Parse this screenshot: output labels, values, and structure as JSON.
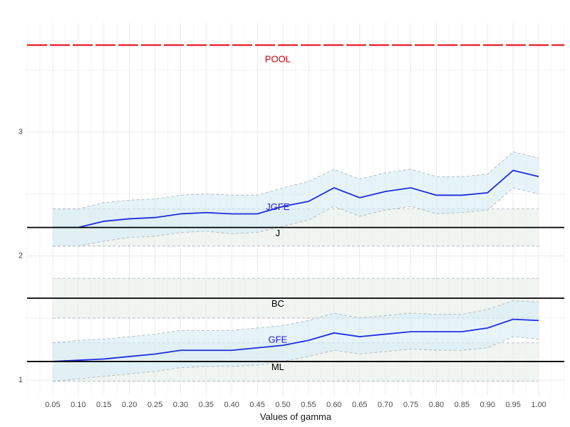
{
  "chart_data": {
    "type": "line",
    "title": "",
    "xlabel": "Values of gamma",
    "ylabel": "",
    "x": [
      0.05,
      0.1,
      0.15,
      0.2,
      0.25,
      0.3,
      0.35,
      0.4,
      0.45,
      0.5,
      0.55,
      0.6,
      0.65,
      0.7,
      0.75,
      0.8,
      0.85,
      0.9,
      0.95,
      1.0
    ],
    "x_tick_labels": [
      "0.05",
      "0.10",
      "0.15",
      "0.20",
      "0.25",
      "0.30",
      "0.35",
      "0.40",
      "0.45",
      "0.50",
      "0.55",
      "0.60",
      "0.65",
      "0.70",
      "0.75",
      "0.80",
      "0.85",
      "0.90",
      "0.95",
      "1.00"
    ],
    "xlim": [
      0.0,
      1.05
    ],
    "ylim": [
      0.88,
      3.88
    ],
    "y_ticks": [
      1,
      2,
      3
    ],
    "y_tick_labels": [
      "1",
      "2",
      "3"
    ],
    "grid": true,
    "legend": "none",
    "colors": {
      "jgfe_line": "#1f2de0",
      "gfe_line": "#1f2de0",
      "band_blue": "#d6ecf7",
      "band_grey": "#e4ece7",
      "band_border": "#a8b0b8",
      "ref_line": "#000000",
      "pool_line": "#e8000b",
      "pool_label": "#cc0000",
      "jgfe_label": "#2222cc",
      "gfe_label": "#2222cc",
      "black_label": "#000000"
    },
    "series": [
      {
        "name": "JGFE",
        "values": [
          2.23,
          2.23,
          2.28,
          2.3,
          2.31,
          2.34,
          2.35,
          2.34,
          2.34,
          2.4,
          2.44,
          2.55,
          2.47,
          2.52,
          2.55,
          2.49,
          2.49,
          2.51,
          2.69,
          2.64
        ],
        "lower": [
          2.08,
          2.08,
          2.12,
          2.15,
          2.16,
          2.19,
          2.2,
          2.18,
          2.19,
          2.24,
          2.29,
          2.4,
          2.32,
          2.37,
          2.4,
          2.34,
          2.35,
          2.37,
          2.55,
          2.5
        ],
        "upper": [
          2.38,
          2.38,
          2.43,
          2.45,
          2.46,
          2.49,
          2.5,
          2.49,
          2.49,
          2.55,
          2.6,
          2.7,
          2.62,
          2.67,
          2.7,
          2.64,
          2.64,
          2.66,
          2.84,
          2.79
        ]
      },
      {
        "name": "GFE",
        "values": [
          1.15,
          1.16,
          1.17,
          1.19,
          1.21,
          1.24,
          1.24,
          1.24,
          1.26,
          1.28,
          1.32,
          1.38,
          1.35,
          1.37,
          1.39,
          1.39,
          1.39,
          1.42,
          1.49,
          1.48
        ],
        "lower": [
          0.99,
          1.01,
          1.03,
          1.05,
          1.07,
          1.1,
          1.11,
          1.11,
          1.12,
          1.15,
          1.19,
          1.24,
          1.21,
          1.23,
          1.25,
          1.24,
          1.24,
          1.26,
          1.35,
          1.33
        ],
        "upper": [
          1.3,
          1.32,
          1.33,
          1.35,
          1.37,
          1.4,
          1.4,
          1.4,
          1.42,
          1.44,
          1.48,
          1.54,
          1.5,
          1.52,
          1.54,
          1.53,
          1.53,
          1.57,
          1.64,
          1.63
        ]
      }
    ],
    "reference_lines": [
      {
        "name": "POOL",
        "value": 3.7,
        "style": "dashed",
        "color": "pool_line",
        "label_color": "pool_label",
        "label_y": 3.58
      },
      {
        "name": "J",
        "value": 2.23,
        "style": "solid",
        "color": "ref_line",
        "label_color": "black_label",
        "label_y": 2.18
      },
      {
        "name": "BC",
        "value": 1.66,
        "style": "solid",
        "color": "ref_line",
        "label_color": "black_label",
        "label_y": 1.61
      },
      {
        "name": "ML",
        "value": 1.15,
        "style": "solid",
        "color": "ref_line",
        "label_color": "black_label",
        "label_y": 1.1
      }
    ],
    "series_labels": [
      {
        "name": "JGFE",
        "label_y": 2.39,
        "label_color": "jgfe_label"
      },
      {
        "name": "GFE",
        "label_y": 1.32,
        "label_color": "gfe_label"
      }
    ],
    "static_bands": [
      {
        "lower": 2.08,
        "upper": 2.38
      },
      {
        "lower": 1.5,
        "upper": 1.82
      },
      {
        "lower": 0.99,
        "upper": 1.3
      }
    ]
  }
}
